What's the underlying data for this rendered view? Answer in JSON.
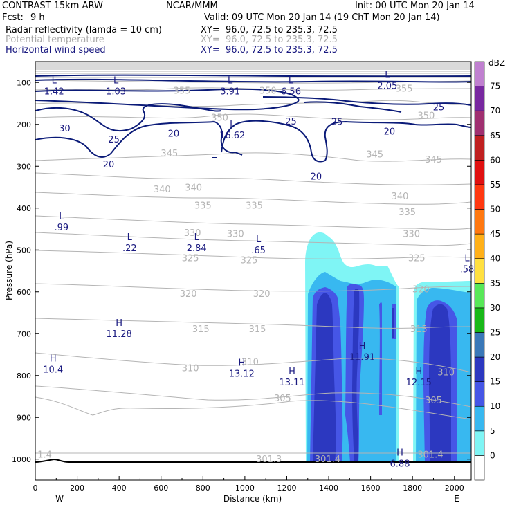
{
  "header": {
    "model": "CONTRAST 15km ARW",
    "center": "NCAR/MMM",
    "init": "Init: 00 UTC Mon 20 Jan 14",
    "fcst_label": "Fcst:",
    "fcst_value": "9 h",
    "valid": "Valid: 09 UTC Mon 20 Jan 14 (19 ChT Mon 20 Jan 14)",
    "fields": [
      {
        "name": "Radar reflectivity (lamda = 10 cm)",
        "xy": "XY=  96.0, 72.5 to 235.3, 72.5"
      },
      {
        "name": "Potential temperature",
        "xy": "XY=  96.0, 72.5 to 235.3, 72.5"
      },
      {
        "name": "Horizontal wind speed",
        "xy": "XY=  96.0, 72.5 to 235.3, 72.5"
      }
    ]
  },
  "colors": {
    "theta": "#b4b4b4",
    "wind": "#0a1a78",
    "text_navy": "#1a1a80",
    "refl_5": "#7ff5f5",
    "refl_10": "#38b8f0",
    "refl_15": "#4656e6",
    "refl_20": "#2c38c0"
  },
  "chart_data": {
    "type": "contour",
    "xlabel": "Distance (km)",
    "ylabel": "Pressure (hPa)",
    "xlim": [
      0,
      2080
    ],
    "ylim": [
      1050,
      50
    ],
    "y_scale": "linear",
    "x_ticks": [
      0,
      200,
      400,
      600,
      800,
      1000,
      1200,
      1400,
      1600,
      1800,
      2000
    ],
    "y_ticks": [
      100,
      200,
      300,
      400,
      500,
      600,
      700,
      800,
      900,
      1000
    ],
    "x_end_labels": {
      "left": "W",
      "right": "E"
    },
    "colorbar": {
      "title": "dBZ",
      "levels": [
        0,
        5,
        10,
        15,
        20,
        25,
        30,
        35,
        40,
        45,
        50,
        55,
        60,
        65,
        70,
        75
      ],
      "colors": [
        "#ffffff",
        "#7ff5f5",
        "#38b8f0",
        "#4656e6",
        "#2c38c0",
        "#3a78b8",
        "#18b818",
        "#58e858",
        "#ffe040",
        "#ffb018",
        "#ff7810",
        "#ff3810",
        "#e01010",
        "#c02020",
        "#a03070",
        "#7828a0",
        "#c080d0"
      ]
    },
    "reflectivity_columns": [
      {
        "x_range": [
          1310,
          1740
        ],
        "top_hPa": 450,
        "max_dbz": 20
      },
      {
        "x_range": [
          1800,
          2080
        ],
        "top_hPa": 580,
        "max_dbz": 20
      }
    ],
    "theta_labels": [
      {
        "text": "355",
        "x": 700,
        "p": 120
      },
      {
        "text": "355",
        "x": 1760,
        "p": 115
      },
      {
        "text": "350",
        "x": 1110,
        "p": 120
      },
      {
        "text": "350",
        "x": 880,
        "p": 185
      },
      {
        "text": "350",
        "x": 1865,
        "p": 180
      },
      {
        "text": "345",
        "x": 1620,
        "p": 272
      },
      {
        "text": "345",
        "x": 640,
        "p": 270
      },
      {
        "text": "345",
        "x": 1900,
        "p": 285
      },
      {
        "text": "340",
        "x": 605,
        "p": 356
      },
      {
        "text": "340",
        "x": 755,
        "p": 352
      },
      {
        "text": "340",
        "x": 1740,
        "p": 372
      },
      {
        "text": "335",
        "x": 800,
        "p": 395
      },
      {
        "text": "335",
        "x": 1045,
        "p": 395
      },
      {
        "text": "335",
        "x": 1775,
        "p": 410
      },
      {
        "text": "330",
        "x": 750,
        "p": 460
      },
      {
        "text": "330",
        "x": 955,
        "p": 462
      },
      {
        "text": "330",
        "x": 1795,
        "p": 462
      },
      {
        "text": "325",
        "x": 740,
        "p": 520
      },
      {
        "text": "325",
        "x": 1020,
        "p": 525
      },
      {
        "text": "325",
        "x": 1820,
        "p": 520
      },
      {
        "text": "320",
        "x": 730,
        "p": 605
      },
      {
        "text": "320",
        "x": 1080,
        "p": 605
      },
      {
        "text": "320",
        "x": 1840,
        "p": 595
      },
      {
        "text": "315",
        "x": 790,
        "p": 690
      },
      {
        "text": "315",
        "x": 1060,
        "p": 690
      },
      {
        "text": "315",
        "x": 1830,
        "p": 690
      },
      {
        "text": "310",
        "x": 740,
        "p": 783
      },
      {
        "text": "310",
        "x": 1025,
        "p": 768
      },
      {
        "text": "310",
        "x": 1960,
        "p": 793
      },
      {
        "text": "305",
        "x": 1180,
        "p": 855
      },
      {
        "text": "305",
        "x": 1900,
        "p": 860
      },
      {
        "text": "1.4",
        "x": 45,
        "p": 990
      },
      {
        "text": "301.3",
        "x": 1115,
        "p": 1000
      },
      {
        "text": "301.4",
        "x": 1395,
        "p": 1000
      },
      {
        "text": "301.4",
        "x": 1885,
        "p": 990
      }
    ],
    "wind_labels": [
      {
        "text": "30",
        "x": 140,
        "p": 210
      },
      {
        "text": "25",
        "x": 375,
        "p": 237
      },
      {
        "text": "20",
        "x": 350,
        "p": 296
      },
      {
        "text": "20",
        "x": 660,
        "p": 223
      },
      {
        "text": "25",
        "x": 1220,
        "p": 194
      },
      {
        "text": "25",
        "x": 1440,
        "p": 195
      },
      {
        "text": "20",
        "x": 1690,
        "p": 218
      },
      {
        "text": "20",
        "x": 1340,
        "p": 325
      },
      {
        "text": "25",
        "x": 1925,
        "p": 160
      }
    ],
    "extrema": [
      {
        "kind": "L",
        "value": "1.42",
        "x": 90,
        "p": 105
      },
      {
        "kind": "L",
        "value": "1.03",
        "x": 385,
        "p": 105
      },
      {
        "kind": "L",
        "value": "3.91",
        "x": 930,
        "p": 105
      },
      {
        "kind": "L",
        "value": "6.56",
        "x": 1220,
        "p": 105
      },
      {
        "kind": "L",
        "value": "2.05",
        "x": 1680,
        "p": 92
      },
      {
        "kind": "L",
        "value": "16.62",
        "x": 940,
        "p": 210
      },
      {
        "kind": "L",
        "value": ".99",
        "x": 125,
        "p": 430
      },
      {
        "kind": "L",
        "value": ".22",
        "x": 450,
        "p": 480
      },
      {
        "kind": "L",
        "value": "2.84",
        "x": 770,
        "p": 480
      },
      {
        "kind": "L",
        "value": ".65",
        "x": 1065,
        "p": 485
      },
      {
        "kind": "L",
        "value": ".58",
        "x": 2060,
        "p": 530
      },
      {
        "kind": "H",
        "value": "11.28",
        "x": 400,
        "p": 685
      },
      {
        "kind": "H",
        "value": "10.4",
        "x": 85,
        "p": 770
      },
      {
        "kind": "H",
        "value": "13.12",
        "x": 985,
        "p": 780
      },
      {
        "kind": "H",
        "value": "13.11",
        "x": 1225,
        "p": 800
      },
      {
        "kind": "H",
        "value": "11.91",
        "x": 1560,
        "p": 740
      },
      {
        "kind": "H",
        "value": "12.15",
        "x": 1830,
        "p": 800
      },
      {
        "kind": "H",
        "value": "6.88",
        "x": 1740,
        "p": 995
      }
    ]
  }
}
